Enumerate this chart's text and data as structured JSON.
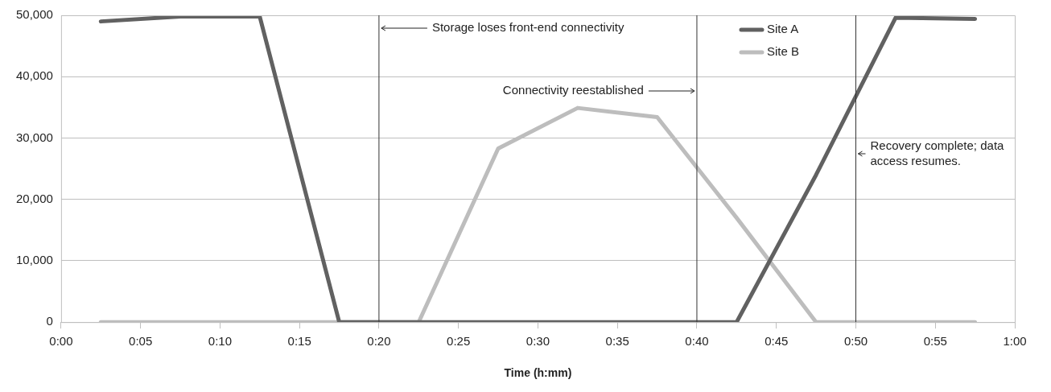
{
  "chart_data": {
    "type": "line",
    "xlabel": "Time (h:mm)",
    "x": [
      2.5,
      7.5,
      12.5,
      17.5,
      22.5,
      27.5,
      32.5,
      37.5,
      42.5,
      47.5,
      52.5,
      57.5
    ],
    "series": [
      {
        "name": "Site A",
        "color": "#616161",
        "values": [
          49000,
          49800,
          49800,
          0,
          0,
          0,
          0,
          0,
          0,
          24000,
          49600,
          49400
        ]
      },
      {
        "name": "Site B",
        "color": "#bdbdbd",
        "values": [
          0,
          0,
          0,
          0,
          0,
          28300,
          34900,
          33400,
          17000,
          0,
          0,
          0
        ]
      }
    ],
    "xlim": [
      0,
      60
    ],
    "xticks": [
      {
        "value": 0,
        "label": "0:00"
      },
      {
        "value": 5,
        "label": "0:05"
      },
      {
        "value": 10,
        "label": "0:10"
      },
      {
        "value": 15,
        "label": "0:15"
      },
      {
        "value": 20,
        "label": "0:20"
      },
      {
        "value": 25,
        "label": "0:25"
      },
      {
        "value": 30,
        "label": "0:30"
      },
      {
        "value": 35,
        "label": "0:35"
      },
      {
        "value": 40,
        "label": "0:40"
      },
      {
        "value": 45,
        "label": "0:45"
      },
      {
        "value": 50,
        "label": "0:50"
      },
      {
        "value": 55,
        "label": "0:55"
      },
      {
        "value": 60,
        "label": "1:00"
      }
    ],
    "ylim": [
      0,
      50000
    ],
    "yticks": [
      0,
      {
        "value": 10000,
        "label": "10,000"
      },
      {
        "value": 20000,
        "label": "20,000"
      },
      {
        "value": 30000,
        "label": "30,000"
      },
      {
        "value": 40000,
        "label": "40,000"
      },
      {
        "value": 50000,
        "label": "50,000"
      }
    ],
    "ref_lines": [
      {
        "axis": "x",
        "value": 20,
        "color": "#333333",
        "label": "Storage loses front-end connectivity"
      },
      {
        "axis": "x",
        "value": 40,
        "color": "#333333",
        "label": "Connectivity reestablished"
      },
      {
        "axis": "x",
        "value": 50,
        "color": "#333333",
        "label": "Recovery complete; data access resumes."
      }
    ],
    "grid": "y",
    "legend": "top right",
    "marker": "none",
    "line_style": "solid"
  }
}
